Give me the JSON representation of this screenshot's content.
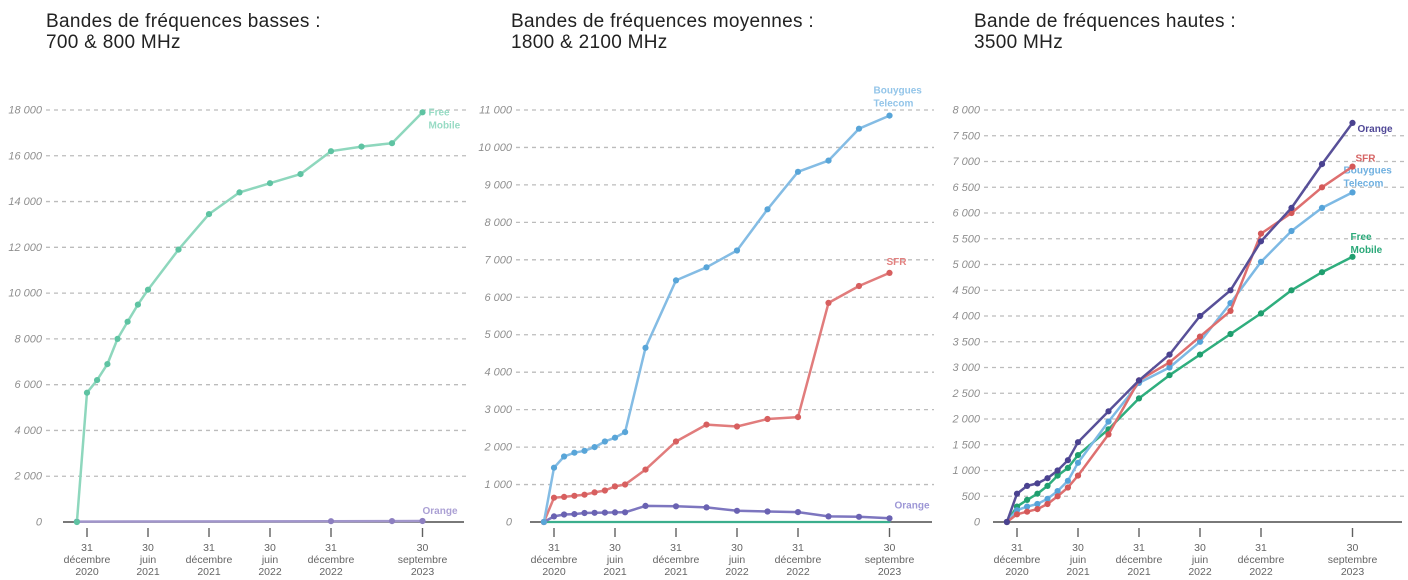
{
  "page": {
    "background": "#ffffff"
  },
  "chart_data": [
    {
      "id": "low-bands",
      "type": "line",
      "title_lines": [
        "Bandes de fréquences basses :",
        "700 & 800 MHz"
      ],
      "y_max": 18000,
      "y_step": 2000,
      "x_range": [
        2020.917,
        2023.92
      ],
      "grid": "dashed-horizontal",
      "y_ticks": [
        [
          "18 000",
          18000
        ],
        [
          "16 000",
          16000
        ],
        [
          "14 000",
          14000
        ],
        [
          "12 000",
          12000
        ],
        [
          "10 000",
          10000
        ],
        [
          "8 000",
          8000
        ],
        [
          "6 000",
          6000
        ],
        [
          "4 000",
          4000
        ],
        [
          "2 000",
          2000
        ],
        [
          "0",
          0
        ]
      ],
      "x_ticks": [
        {
          "t": 2021.0,
          "lines": [
            "31",
            "décembre",
            "2020"
          ]
        },
        {
          "t": 2021.5,
          "lines": [
            "30",
            "juin",
            "2021"
          ]
        },
        {
          "t": 2022.0,
          "lines": [
            "31",
            "décembre",
            "2021"
          ]
        },
        {
          "t": 2022.5,
          "lines": [
            "30",
            "juin",
            "2022"
          ]
        },
        {
          "t": 2023.0,
          "lines": [
            "31",
            "décembre",
            "2022"
          ]
        },
        {
          "t": 2023.75,
          "lines": [
            "30",
            "septembre",
            "2023"
          ]
        }
      ],
      "series": [
        {
          "name": "Orange",
          "label_lines": [
            "Orange"
          ],
          "line_color": "#a195cb",
          "marker_color": "#8d7fc0",
          "label_color": "#aba0d4",
          "label_offset": [
            0,
            -7
          ],
          "points": [
            [
              2020.917,
              18
            ],
            [
              2023.0,
              34
            ],
            [
              2023.5,
              38
            ],
            [
              2023.75,
              42
            ]
          ]
        },
        {
          "name": "Free Mobile",
          "label_lines": [
            "Free",
            "Mobile"
          ],
          "line_color": "#8ed7bd",
          "marker_color": "#5ec3a2",
          "label_color": "#97dbc4",
          "label_offset": [
            6,
            3
          ],
          "points": [
            [
              2020.917,
              0
            ],
            [
              2021.0,
              5650
            ],
            [
              2021.083,
              6200
            ],
            [
              2021.167,
              6900
            ],
            [
              2021.25,
              8000
            ],
            [
              2021.333,
              8750
            ],
            [
              2021.417,
              9500
            ],
            [
              2021.5,
              10150
            ],
            [
              2021.75,
              11900
            ],
            [
              2022.0,
              13450
            ],
            [
              2022.25,
              14400
            ],
            [
              2022.5,
              14800
            ],
            [
              2022.75,
              15200
            ],
            [
              2023.0,
              16200
            ],
            [
              2023.25,
              16400
            ],
            [
              2023.5,
              16550
            ],
            [
              2023.75,
              17900
            ]
          ]
        }
      ]
    },
    {
      "id": "mid-bands",
      "type": "line",
      "title_lines": [
        "Bandes de fréquences moyennes :",
        "1800 & 2100 MHz"
      ],
      "y_max": 11000,
      "y_step": 1000,
      "x_range": [
        2020.917,
        2023.92
      ],
      "grid": "dashed-horizontal",
      "y_ticks": [
        [
          "11 000",
          11000
        ],
        [
          "10 000",
          10000
        ],
        [
          "9 000",
          9000
        ],
        [
          "8 000",
          8000
        ],
        [
          "7 000",
          7000
        ],
        [
          "6 000",
          6000
        ],
        [
          "5 000",
          5000
        ],
        [
          "4 000",
          4000
        ],
        [
          "3 000",
          3000
        ],
        [
          "2 000",
          2000
        ],
        [
          "1 000",
          1000
        ],
        [
          "0",
          0
        ]
      ],
      "x_ticks": [
        {
          "t": 2021.0,
          "lines": [
            "31",
            "décembre",
            "2020"
          ]
        },
        {
          "t": 2021.5,
          "lines": [
            "30",
            "juin",
            "2021"
          ]
        },
        {
          "t": 2022.0,
          "lines": [
            "31",
            "décembre",
            "2021"
          ]
        },
        {
          "t": 2022.5,
          "lines": [
            "30",
            "juin",
            "2022"
          ]
        },
        {
          "t": 2023.0,
          "lines": [
            "31",
            "décembre",
            "2022"
          ]
        },
        {
          "t": 2023.75,
          "lines": [
            "30",
            "septembre",
            "2023"
          ]
        }
      ],
      "series": [
        {
          "name": "Free Mobile",
          "label_lines": [],
          "line_color": "#3bae8d",
          "marker_color": "#3bae8d",
          "label_color": "#3bae8d",
          "markers": false,
          "points": [
            [
              2020.917,
              0
            ],
            [
              2023.75,
              0
            ]
          ]
        },
        {
          "name": "Orange",
          "label_lines": [
            "Orange"
          ],
          "line_color": "#7d76bf",
          "marker_color": "#6a62b2",
          "label_color": "#9d97d6",
          "label_offset": [
            5,
            -10
          ],
          "points": [
            [
              2020.917,
              0
            ],
            [
              2021.0,
              150
            ],
            [
              2021.083,
              200
            ],
            [
              2021.167,
              210
            ],
            [
              2021.25,
              240
            ],
            [
              2021.333,
              245
            ],
            [
              2021.417,
              250
            ],
            [
              2021.5,
              255
            ],
            [
              2021.583,
              260
            ],
            [
              2021.75,
              430
            ],
            [
              2022.0,
              420
            ],
            [
              2022.25,
              390
            ],
            [
              2022.5,
              300
            ],
            [
              2022.75,
              280
            ],
            [
              2023.0,
              265
            ],
            [
              2023.25,
              150
            ],
            [
              2023.5,
              140
            ],
            [
              2023.75,
              100
            ]
          ]
        },
        {
          "name": "SFR",
          "label_lines": [
            "SFR"
          ],
          "line_color": "#e17c7c",
          "marker_color": "#d75f5f",
          "label_color": "#e2807f",
          "label_offset": [
            -3,
            -8
          ],
          "points": [
            [
              2020.917,
              0
            ],
            [
              2021.0,
              650
            ],
            [
              2021.083,
              670
            ],
            [
              2021.167,
              700
            ],
            [
              2021.25,
              730
            ],
            [
              2021.333,
              790
            ],
            [
              2021.417,
              840
            ],
            [
              2021.5,
              950
            ],
            [
              2021.583,
              1000
            ],
            [
              2021.75,
              1400
            ],
            [
              2022.0,
              2150
            ],
            [
              2022.25,
              2600
            ],
            [
              2022.5,
              2550
            ],
            [
              2022.75,
              2750
            ],
            [
              2023.0,
              2800
            ],
            [
              2023.25,
              5850
            ],
            [
              2023.5,
              6300
            ],
            [
              2023.75,
              6650
            ]
          ]
        },
        {
          "name": "Bouygues Telecom",
          "label_lines": [
            "Bouygues",
            "Telecom"
          ],
          "line_color": "#84bce4",
          "marker_color": "#58a5d8",
          "label_color": "#93c5e9",
          "label_offset": [
            -16,
            -22
          ],
          "points": [
            [
              2020.917,
              0
            ],
            [
              2021.0,
              1450
            ],
            [
              2021.083,
              1750
            ],
            [
              2021.167,
              1850
            ],
            [
              2021.25,
              1900
            ],
            [
              2021.333,
              2000
            ],
            [
              2021.417,
              2150
            ],
            [
              2021.5,
              2250
            ],
            [
              2021.583,
              2400
            ],
            [
              2021.75,
              4650
            ],
            [
              2022.0,
              6450
            ],
            [
              2022.25,
              6800
            ],
            [
              2022.5,
              7250
            ],
            [
              2022.75,
              8350
            ],
            [
              2023.0,
              9350
            ],
            [
              2023.25,
              9650
            ],
            [
              2023.5,
              10500
            ],
            [
              2023.75,
              10850
            ]
          ]
        }
      ]
    },
    {
      "id": "high-band",
      "type": "line",
      "title_lines": [
        "Bande de fréquences hautes :",
        "3500 MHz"
      ],
      "y_max": 8000,
      "y_step": 500,
      "x_range": [
        2020.917,
        2023.92
      ],
      "grid": "dashed-horizontal",
      "y_ticks": [
        [
          "8 000",
          8000
        ],
        [
          "7 500",
          7500
        ],
        [
          "7 000",
          7000
        ],
        [
          "6 500",
          6500
        ],
        [
          "6 000",
          6000
        ],
        [
          "5 500",
          5500
        ],
        [
          "5 000",
          5000
        ],
        [
          "4 500",
          4500
        ],
        [
          "4 000",
          4000
        ],
        [
          "3 500",
          3500
        ],
        [
          "3 000",
          3000
        ],
        [
          "2 500",
          2500
        ],
        [
          "2 000",
          2000
        ],
        [
          "1 500",
          1500
        ],
        [
          "1 000",
          1000
        ],
        [
          "500",
          500
        ],
        [
          "0",
          0
        ]
      ],
      "x_ticks": [
        {
          "t": 2021.0,
          "lines": [
            "31",
            "décembre",
            "2020"
          ]
        },
        {
          "t": 2021.5,
          "lines": [
            "30",
            "juin",
            "2021"
          ]
        },
        {
          "t": 2022.0,
          "lines": [
            "31",
            "décembre",
            "2021"
          ]
        },
        {
          "t": 2022.5,
          "lines": [
            "30",
            "juin",
            "2022"
          ]
        },
        {
          "t": 2023.0,
          "lines": [
            "31",
            "décembre",
            "2022"
          ]
        },
        {
          "t": 2023.75,
          "lines": [
            "30",
            "septembre",
            "2023"
          ]
        }
      ],
      "series": [
        {
          "name": "Free Mobile",
          "label_lines": [
            "Free",
            "Mobile"
          ],
          "line_color": "#2fae7e",
          "marker_color": "#1f9e6e",
          "label_color": "#2aa878",
          "label_offset": [
            -2,
            -17
          ],
          "points": [
            [
              2020.917,
              0
            ],
            [
              2021.0,
              300
            ],
            [
              2021.083,
              430
            ],
            [
              2021.167,
              550
            ],
            [
              2021.25,
              700
            ],
            [
              2021.333,
              900
            ],
            [
              2021.417,
              1050
            ],
            [
              2021.5,
              1300
            ],
            [
              2021.75,
              1800
            ],
            [
              2022.0,
              2400
            ],
            [
              2022.25,
              2850
            ],
            [
              2022.5,
              3250
            ],
            [
              2022.75,
              3650
            ],
            [
              2023.0,
              4050
            ],
            [
              2023.25,
              4500
            ],
            [
              2023.5,
              4850
            ],
            [
              2023.75,
              5150
            ]
          ]
        },
        {
          "name": "Bouygues Telecom",
          "label_lines": [
            "Bouygues",
            "Telecom"
          ],
          "line_color": "#7db9e4",
          "marker_color": "#55a3d9",
          "label_color": "#6fb0e0",
          "label_offset": [
            -9,
            -19
          ],
          "points": [
            [
              2020.917,
              0
            ],
            [
              2021.0,
              230
            ],
            [
              2021.083,
              300
            ],
            [
              2021.167,
              350
            ],
            [
              2021.25,
              450
            ],
            [
              2021.333,
              600
            ],
            [
              2021.417,
              800
            ],
            [
              2021.5,
              1150
            ],
            [
              2021.75,
              1950
            ],
            [
              2022.0,
              2700
            ],
            [
              2022.25,
              3000
            ],
            [
              2022.5,
              3500
            ],
            [
              2022.75,
              4250
            ],
            [
              2023.0,
              5050
            ],
            [
              2023.25,
              5650
            ],
            [
              2023.5,
              6100
            ],
            [
              2023.75,
              6400
            ]
          ]
        },
        {
          "name": "SFR",
          "label_lines": [
            "SFR"
          ],
          "line_color": "#de6f6f",
          "marker_color": "#d45858",
          "label_color": "#d66464",
          "label_offset": [
            3,
            -5
          ],
          "points": [
            [
              2020.917,
              0
            ],
            [
              2021.0,
              150
            ],
            [
              2021.083,
              200
            ],
            [
              2021.167,
              250
            ],
            [
              2021.25,
              350
            ],
            [
              2021.333,
              500
            ],
            [
              2021.417,
              670
            ],
            [
              2021.5,
              900
            ],
            [
              2021.75,
              1700
            ],
            [
              2022.0,
              2750
            ],
            [
              2022.25,
              3100
            ],
            [
              2022.5,
              3600
            ],
            [
              2022.75,
              4100
            ],
            [
              2023.0,
              5600
            ],
            [
              2023.25,
              6000
            ],
            [
              2023.5,
              6500
            ],
            [
              2023.75,
              6900
            ]
          ]
        },
        {
          "name": "Orange",
          "label_lines": [
            "Orange"
          ],
          "line_color": "#585098",
          "marker_color": "#4a4290",
          "label_color": "#4f4796",
          "label_offset": [
            5,
            9
          ],
          "points": [
            [
              2020.917,
              0
            ],
            [
              2021.0,
              550
            ],
            [
              2021.083,
              700
            ],
            [
              2021.167,
              750
            ],
            [
              2021.25,
              850
            ],
            [
              2021.333,
              1000
            ],
            [
              2021.417,
              1200
            ],
            [
              2021.5,
              1550
            ],
            [
              2021.75,
              2150
            ],
            [
              2022.0,
              2750
            ],
            [
              2022.25,
              3250
            ],
            [
              2022.5,
              4000
            ],
            [
              2022.75,
              4500
            ],
            [
              2023.0,
              5450
            ],
            [
              2023.25,
              6100
            ],
            [
              2023.5,
              6950
            ],
            [
              2023.75,
              7750
            ]
          ]
        }
      ]
    }
  ]
}
